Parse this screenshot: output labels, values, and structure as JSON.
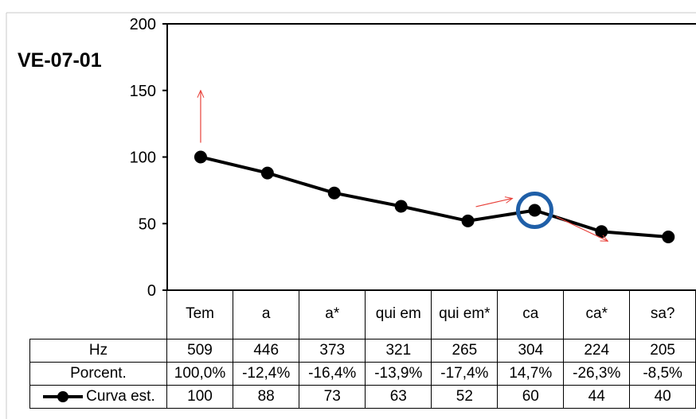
{
  "chart_data": {
    "type": "line",
    "title": "VE-07-01",
    "categories": [
      "Tem",
      "a",
      "a*",
      "qui em",
      "qui em*",
      "ca",
      "ca*",
      "sa?"
    ],
    "ylim": [
      0,
      200
    ],
    "yticks": [
      "0",
      "50",
      "100",
      "150",
      "200"
    ],
    "series": [
      {
        "name": "Curva est.",
        "values": [
          100,
          88,
          73,
          63,
          52,
          60,
          44,
          40
        ]
      }
    ],
    "data_table": {
      "rows": [
        {
          "label": "Hz",
          "values": [
            "509",
            "446",
            "373",
            "321",
            "265",
            "304",
            "224",
            "205"
          ]
        },
        {
          "label": "Porcent.",
          "values": [
            "100,0%",
            "-12,4%",
            "-16,4%",
            "-13,9%",
            "-17,4%",
            "14,7%",
            "-26,3%",
            "-8,5%"
          ]
        },
        {
          "label": "Curva est.",
          "values": [
            "100",
            "88",
            "73",
            "63",
            "52",
            "60",
            "44",
            "40"
          ]
        }
      ]
    },
    "annotations": {
      "highlighted_point_category": "ca",
      "arrow_color": "#e8413a",
      "circle_color": "#1f5fa8"
    },
    "colors": {
      "line": "#000000",
      "axis": "#000000"
    }
  }
}
